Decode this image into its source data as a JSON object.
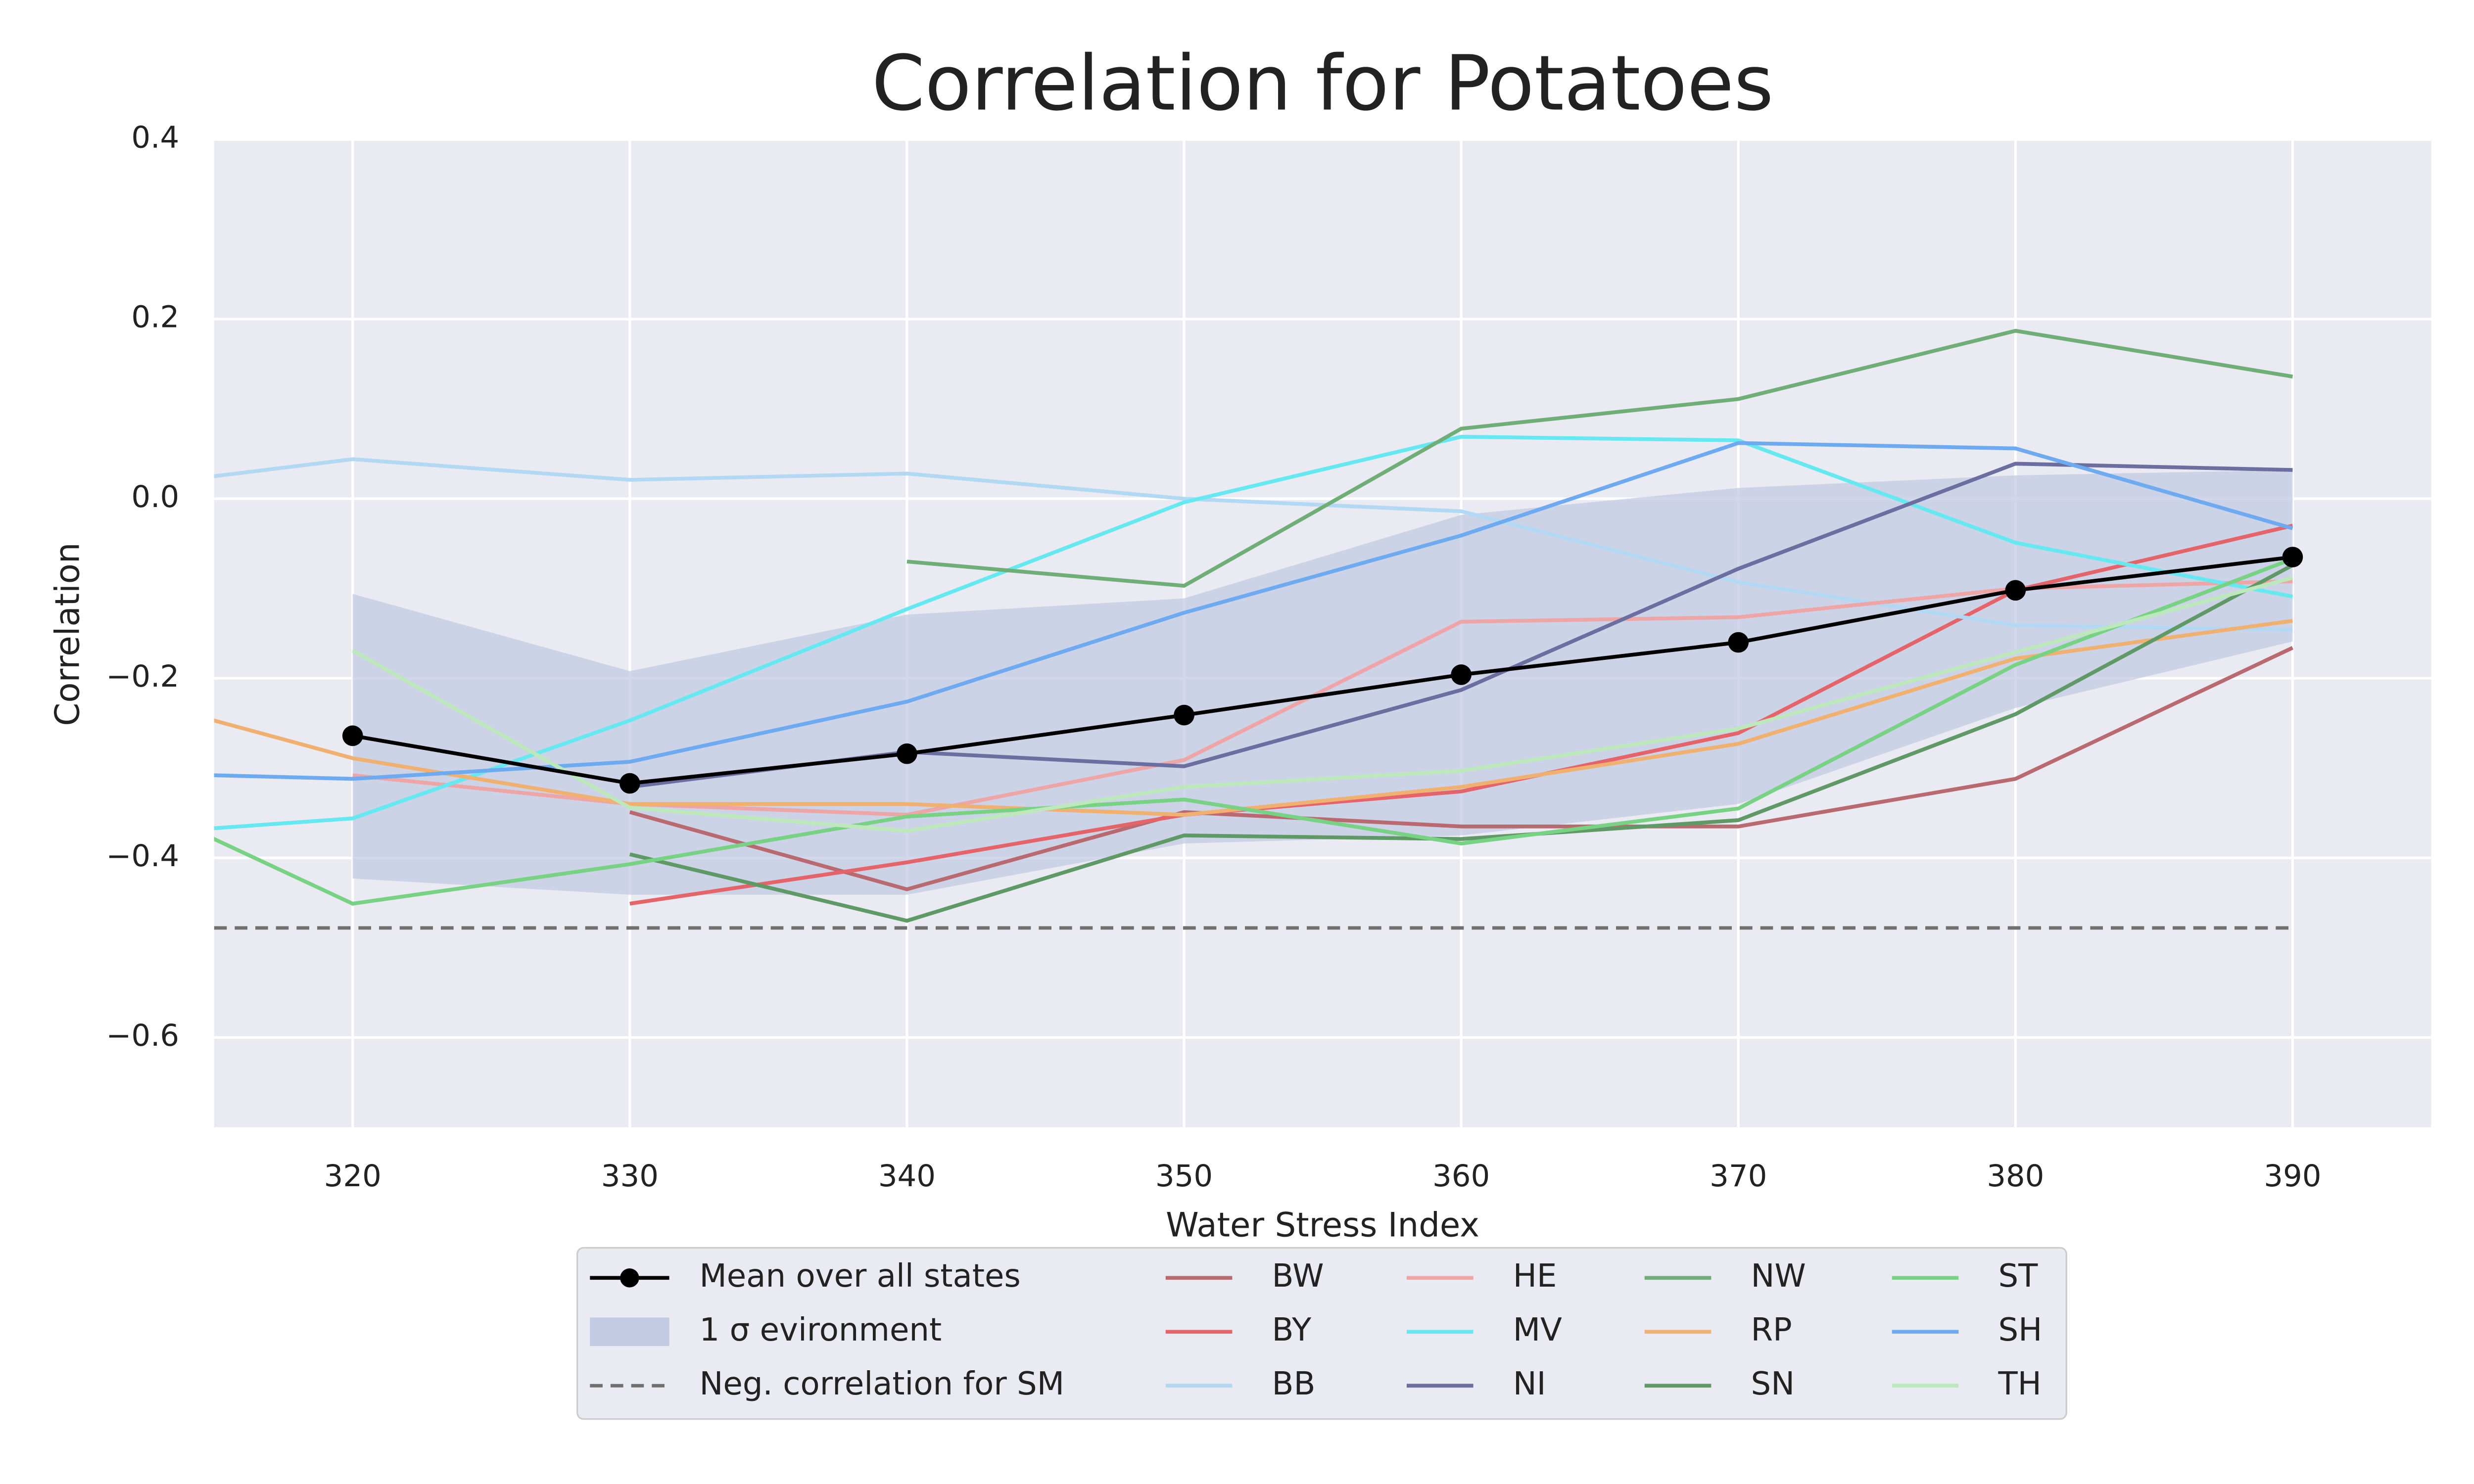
{
  "chart_data": {
    "type": "line",
    "title": "Correlation for Potatoes",
    "xlabel": "Water Stress Index",
    "ylabel": "Correlation",
    "x": [
      310,
      320,
      330,
      340,
      350,
      360,
      370,
      380,
      390
    ],
    "xlim": [
      315,
      395
    ],
    "xticks": [
      320,
      330,
      340,
      350,
      360,
      370,
      380,
      390
    ],
    "ylim": [
      -0.7,
      0.4
    ],
    "yticks": [
      {
        "value": -0.6,
        "label": "−0.6"
      },
      {
        "value": -0.4,
        "label": "−0.4"
      },
      {
        "value": -0.2,
        "label": "−0.2"
      },
      {
        "value": 0,
        "label": "0.0"
      },
      0.2,
      0.4
    ],
    "grid": true,
    "legend": "lower center",
    "mean": {
      "name": "Mean over all states",
      "color": "#000000",
      "values": [
        null,
        -0.264,
        -0.317,
        -0.284,
        -0.241,
        -0.196,
        -0.16,
        -0.102,
        -0.065
      ]
    },
    "band": {
      "name": "1 σ evironment",
      "color": "#c3cbe3",
      "lower": [
        null,
        -0.423,
        -0.441,
        -0.441,
        -0.384,
        -0.375,
        -0.34,
        -0.233,
        -0.159
      ],
      "upper": [
        null,
        -0.106,
        -0.192,
        -0.129,
        -0.111,
        -0.018,
        0.012,
        0.026,
        0.032
      ]
    },
    "reference_line": {
      "name": "Neg. correlation for SM",
      "color": "#707070",
      "value": -0.478
    },
    "series": [
      {
        "name": "BW",
        "color": "#b86a70",
        "values": [
          null,
          null,
          -0.349,
          -0.435,
          -0.349,
          -0.365,
          -0.365,
          -0.312,
          -0.166
        ]
      },
      {
        "name": "BY",
        "color": "#e5646a",
        "values": [
          null,
          null,
          -0.451,
          -0.405,
          -0.352,
          -0.326,
          -0.261,
          -0.102,
          -0.03
        ]
      },
      {
        "name": "BB",
        "color": "#b3d8f4",
        "values": [
          0.006,
          0.044,
          0.021,
          0.028,
          0.0,
          -0.014,
          -0.093,
          -0.141,
          -0.146
        ]
      },
      {
        "name": "HE",
        "color": "#eda5a6",
        "values": [
          null,
          -0.308,
          -0.34,
          -0.352,
          -0.291,
          -0.137,
          -0.132,
          -0.1,
          -0.092
        ]
      },
      {
        "name": "MV",
        "color": "#66e8f0",
        "values": [
          -0.378,
          -0.356,
          -0.247,
          -0.123,
          -0.004,
          0.069,
          0.065,
          -0.049,
          -0.109
        ]
      },
      {
        "name": "NI",
        "color": "#6b6e9e",
        "values": [
          null,
          null,
          -0.321,
          -0.282,
          -0.298,
          -0.213,
          -0.078,
          0.039,
          0.032
        ]
      },
      {
        "name": "NW",
        "color": "#6fae76",
        "values": [
          null,
          null,
          null,
          -0.07,
          -0.097,
          0.078,
          0.111,
          0.187,
          0.136
        ]
      },
      {
        "name": "RP",
        "color": "#f0b070",
        "values": [
          -0.205,
          -0.289,
          -0.34,
          -0.34,
          -0.352,
          -0.321,
          -0.273,
          -0.178,
          -0.136
        ]
      },
      {
        "name": "SN",
        "color": "#5f9a66",
        "values": [
          null,
          null,
          -0.396,
          -0.47,
          -0.375,
          -0.379,
          -0.358,
          -0.24,
          -0.074
        ]
      },
      {
        "name": "ST",
        "color": "#78d283",
        "values": [
          -0.307,
          -0.451,
          -0.407,
          -0.354,
          -0.335,
          -0.384,
          -0.345,
          -0.185,
          -0.067
        ]
      },
      {
        "name": "SH",
        "color": "#6eaaf0",
        "values": [
          -0.304,
          -0.312,
          -0.293,
          -0.226,
          -0.127,
          -0.041,
          0.062,
          0.056,
          -0.033
        ]
      },
      {
        "name": "TH",
        "color": "#bce8bc",
        "values": [
          null,
          -0.169,
          -0.344,
          -0.37,
          -0.321,
          -0.303,
          -0.256,
          -0.171,
          -0.088
        ]
      }
    ]
  }
}
